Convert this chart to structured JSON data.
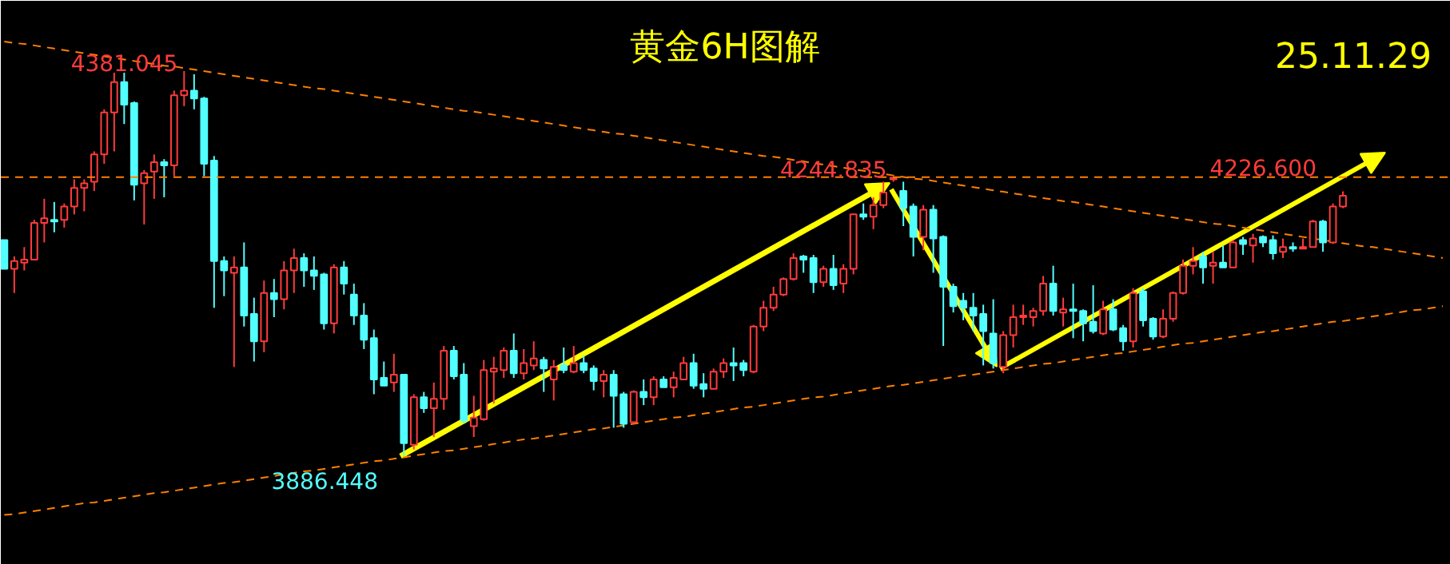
{
  "chart_data": {
    "type": "candlestick",
    "title": "黄金6H图解",
    "categories": [
      null,
      null,
      null,
      null,
      null,
      null,
      null,
      null,
      null,
      null,
      null,
      null,
      null,
      null,
      null,
      null,
      null,
      null,
      null,
      null,
      null,
      null,
      null,
      null,
      null,
      null,
      null,
      null,
      null,
      null,
      null,
      null,
      null,
      null,
      null,
      null,
      null,
      null,
      null,
      null,
      null,
      null,
      null,
      null,
      null,
      null,
      null,
      null,
      null,
      null,
      null,
      null,
      null,
      null,
      null,
      null,
      null,
      null,
      null,
      null,
      null,
      null,
      null,
      null,
      null,
      null,
      null,
      null,
      null,
      null,
      null,
      null,
      null,
      null,
      null,
      null,
      null,
      null,
      null,
      null,
      null,
      null,
      null,
      null,
      null,
      null,
      null,
      null,
      null,
      null,
      null,
      null,
      null,
      null,
      null,
      null,
      null,
      null,
      null,
      null,
      null,
      null,
      null,
      null,
      null,
      null,
      null,
      null,
      null,
      null,
      null,
      null,
      null,
      null,
      null,
      null,
      null,
      null,
      null,
      null,
      null,
      null,
      null,
      null,
      null,
      null,
      null,
      null,
      null,
      null,
      null,
      null,
      null,
      null,
      null,
      null,
      null,
      null,
      null,
      null,
      null,
      null,
      null,
      null,
      null
    ],
    "ohlc": [
      [
        4164,
        4164,
        4127,
        4127
      ],
      [
        4127,
        4143,
        4096,
        4137
      ],
      [
        4135,
        4155,
        4125,
        4139
      ],
      [
        4139,
        4190,
        4139,
        4186
      ],
      [
        4186,
        4217,
        4161,
        4192
      ],
      [
        4190,
        4213,
        4174,
        4188
      ],
      [
        4190,
        4211,
        4180,
        4207
      ],
      [
        4207,
        4242,
        4197,
        4231
      ],
      [
        4231,
        4242,
        4201,
        4237
      ],
      [
        4239,
        4278,
        4227,
        4274
      ],
      [
        4274,
        4332,
        4262,
        4328
      ],
      [
        4328,
        4379,
        4278,
        4367
      ],
      [
        4367,
        4379,
        4313,
        4338
      ],
      [
        4340,
        4342,
        4215,
        4235
      ],
      [
        4237,
        4254,
        4184,
        4250
      ],
      [
        4252,
        4274,
        4217,
        4264
      ],
      [
        4264,
        4268,
        4219,
        4260
      ],
      [
        4260,
        4356,
        4246,
        4350
      ],
      [
        4350,
        4381.045,
        4336,
        4356
      ],
      [
        4356,
        4377,
        4332,
        4346
      ],
      [
        4346,
        4348,
        4246,
        4262
      ],
      [
        4266,
        4272,
        4077,
        4137
      ],
      [
        4137,
        4143,
        4092,
        4125
      ],
      [
        4122,
        4143,
        4001,
        4129
      ],
      [
        4129,
        4161,
        4053,
        4067
      ],
      [
        4069,
        4090,
        4008,
        4034
      ],
      [
        4034,
        4112,
        4020,
        4096
      ],
      [
        4096,
        4114,
        4065,
        4088
      ],
      [
        4088,
        4137,
        4075,
        4125
      ],
      [
        4125,
        4153,
        4096,
        4141
      ],
      [
        4141,
        4147,
        4104,
        4125
      ],
      [
        4125,
        4143,
        4100,
        4118
      ],
      [
        4120,
        4122,
        4049,
        4057
      ],
      [
        4057,
        4133,
        4044,
        4129
      ],
      [
        4129,
        4137,
        4094,
        4108
      ],
      [
        4094,
        4108,
        4055,
        4067
      ],
      [
        4067,
        4083,
        4024,
        4036
      ],
      [
        4038,
        4049,
        3966,
        3985
      ],
      [
        3987,
        4008,
        3977,
        3977
      ],
      [
        3981,
        4018,
        3969,
        3991
      ],
      [
        3991,
        3991,
        3886.448,
        3903
      ],
      [
        3901,
        3966,
        3895,
        3962
      ],
      [
        3962,
        3969,
        3942,
        3948
      ],
      [
        3948,
        3981,
        3911,
        3960
      ],
      [
        3960,
        4028,
        3946,
        4022
      ],
      [
        4022,
        4028,
        3985,
        3989
      ],
      [
        3991,
        4006,
        3928,
        3932
      ],
      [
        3925,
        3964,
        3911,
        3936
      ],
      [
        3934,
        4010,
        3932,
        3997
      ],
      [
        3995,
        4014,
        3954,
        3999
      ],
      [
        3997,
        4026,
        3987,
        4022
      ],
      [
        4022,
        4044,
        3987,
        3993
      ],
      [
        3993,
        4024,
        3985,
        4006
      ],
      [
        4003,
        4034,
        3997,
        4012
      ],
      [
        4010,
        4014,
        3969,
        3999
      ],
      [
        3985,
        4010,
        3958,
        4001
      ],
      [
        4003,
        4026,
        3993,
        3997
      ],
      [
        3995,
        4028,
        3993,
        4006
      ],
      [
        4006,
        4016,
        3993,
        3997
      ],
      [
        3999,
        4003,
        3971,
        3983
      ],
      [
        3983,
        3997,
        3962,
        3991
      ],
      [
        3991,
        3997,
        3923,
        3964
      ],
      [
        3966,
        3969,
        3923,
        3928
      ],
      [
        3930,
        3971,
        3928,
        3969
      ],
      [
        3969,
        3985,
        3952,
        3962
      ],
      [
        3962,
        3989,
        3952,
        3985
      ],
      [
        3985,
        3989,
        3975,
        3975
      ],
      [
        3975,
        3995,
        3962,
        3987
      ],
      [
        3985,
        4014,
        3985,
        4006
      ],
      [
        4006,
        4018,
        3973,
        3977
      ],
      [
        3979,
        3993,
        3962,
        3973
      ],
      [
        3973,
        3999,
        3973,
        3995
      ],
      [
        3995,
        4012,
        3987,
        4006
      ],
      [
        4006,
        4026,
        3983,
        4003
      ],
      [
        4006,
        4010,
        3989,
        3997
      ],
      [
        3995,
        4055,
        3993,
        4053
      ],
      [
        4053,
        4086,
        4047,
        4077
      ],
      [
        4077,
        4104,
        4073,
        4094
      ],
      [
        4094,
        4116,
        4092,
        4114
      ],
      [
        4114,
        4147,
        4112,
        4141
      ],
      [
        4143,
        4145,
        4122,
        4139
      ],
      [
        4141,
        4145,
        4096,
        4110
      ],
      [
        4110,
        4131,
        4104,
        4127
      ],
      [
        4127,
        4145,
        4100,
        4106
      ],
      [
        4108,
        4133,
        4096,
        4127
      ],
      [
        4127,
        4198,
        4120,
        4197
      ],
      [
        4197,
        4211,
        4190,
        4194
      ],
      [
        4194,
        4219,
        4178,
        4209
      ],
      [
        4209,
        4239,
        4205,
        4225
      ],
      [
        4242,
        4244.835,
        4239,
        4244
      ],
      [
        4227,
        4239,
        4182,
        4205
      ],
      [
        4207,
        4211,
        4143,
        4168
      ],
      [
        4168,
        4209,
        4151,
        4203
      ],
      [
        4203,
        4209,
        4122,
        4166
      ],
      [
        4168,
        4170,
        4028,
        4104
      ],
      [
        4104,
        4108,
        4071,
        4079
      ],
      [
        4086,
        4096,
        4061,
        4077
      ],
      [
        4077,
        4096,
        4047,
        4067
      ],
      [
        4069,
        4081,
        4003,
        4047
      ],
      [
        4044,
        4088,
        3999,
        4006
      ],
      [
        4001,
        4047,
        3993,
        4042
      ],
      [
        4042,
        4081,
        4026,
        4065
      ],
      [
        4065,
        4081,
        4055,
        4067
      ],
      [
        4065,
        4077,
        4053,
        4073
      ],
      [
        4073,
        4118,
        4067,
        4108
      ],
      [
        4108,
        4131,
        4067,
        4073
      ],
      [
        4071,
        4090,
        4053,
        4075
      ],
      [
        4075,
        4108,
        4038,
        4073
      ],
      [
        4073,
        4075,
        4034,
        4057
      ],
      [
        4059,
        4106,
        4044,
        4047
      ],
      [
        4044,
        4086,
        4042,
        4075
      ],
      [
        4075,
        4088,
        4047,
        4049
      ],
      [
        4051,
        4055,
        4022,
        4034
      ],
      [
        4034,
        4102,
        4026,
        4096
      ],
      [
        4098,
        4102,
        4053,
        4061
      ],
      [
        4063,
        4065,
        4036,
        4040
      ],
      [
        4040,
        4075,
        4038,
        4063
      ],
      [
        4063,
        4098,
        4059,
        4096
      ],
      [
        4096,
        4139,
        4094,
        4131
      ],
      [
        4131,
        4155,
        4120,
        4137
      ],
      [
        4143,
        4149,
        4108,
        4129
      ],
      [
        4131,
        4149,
        4108,
        4135
      ],
      [
        4135,
        4157,
        4129,
        4129
      ],
      [
        4129,
        4164,
        4129,
        4161
      ],
      [
        4164,
        4168,
        4145,
        4159
      ],
      [
        4157,
        4172,
        4135,
        4166
      ],
      [
        4168,
        4170,
        4155,
        4161
      ],
      [
        4164,
        4170,
        4139,
        4147
      ],
      [
        4149,
        4166,
        4141,
        4155
      ],
      [
        4155,
        4161,
        4149,
        4153
      ],
      [
        4153,
        4166,
        4153,
        4155
      ],
      [
        4155,
        4190,
        4155,
        4188
      ],
      [
        4188,
        4190,
        4149,
        4161
      ],
      [
        4161,
        4211,
        4159,
        4207
      ],
      [
        4207,
        4226.6,
        4205,
        4221
      ],
      null,
      null,
      null,
      null,
      null,
      null,
      null,
      null,
      null,
      null
    ],
    "colors": [
      "#52ffff",
      "#ff3b3b",
      "#ff3b3b",
      "#ff3b3b",
      "#ff3b3b",
      "#52ffff",
      "#ff3b3b",
      "#ff3b3b",
      "#ff3b3b",
      "#ff3b3b",
      "#ff3b3b",
      "#ff3b3b",
      "#52ffff",
      "#52ffff",
      "#ff3b3b",
      "#ff3b3b",
      "#52ffff",
      "#ff3b3b",
      "#ff3b3b",
      "#52ffff",
      "#52ffff",
      "#52ffff",
      "#52ffff",
      "#ff3b3b",
      "#52ffff",
      "#52ffff",
      "#ff3b3b",
      "#52ffff",
      "#ff3b3b",
      "#ff3b3b",
      "#52ffff",
      "#52ffff",
      "#52ffff",
      "#ff3b3b",
      "#52ffff",
      "#52ffff",
      "#52ffff",
      "#52ffff",
      "#52ffff",
      "#ff3b3b",
      "#52ffff",
      "#ff3b3b",
      "#52ffff",
      "#ff3b3b",
      "#ff3b3b",
      "#52ffff",
      "#52ffff",
      "#ff3b3b",
      "#ff3b3b",
      "#ff3b3b",
      "#ff3b3b",
      "#52ffff",
      "#ff3b3b",
      "#ff3b3b",
      "#52ffff",
      "#ff3b3b",
      "#52ffff",
      "#ff3b3b",
      "#52ffff",
      "#52ffff",
      "#ff3b3b",
      "#52ffff",
      "#52ffff",
      "#ff3b3b",
      "#52ffff",
      "#ff3b3b",
      "#52ffff",
      "#ff3b3b",
      "#ff3b3b",
      "#52ffff",
      "#52ffff",
      "#ff3b3b",
      "#ff3b3b",
      "#52ffff",
      "#52ffff",
      "#ff3b3b",
      "#ff3b3b",
      "#ff3b3b",
      "#ff3b3b",
      "#ff3b3b",
      "#52ffff",
      "#52ffff",
      "#ff3b3b",
      "#52ffff",
      "#ff3b3b",
      "#ff3b3b",
      "#52ffff",
      "#ff3b3b",
      "#ff3b3b",
      "#ff3b3b",
      "#52ffff",
      "#52ffff",
      "#ff3b3b",
      "#52ffff",
      "#52ffff",
      "#52ffff",
      "#52ffff",
      "#52ffff",
      "#52ffff",
      "#52ffff",
      "#ff3b3b",
      "#ff3b3b",
      "#ff3b3b",
      "#ff3b3b",
      "#ff3b3b",
      "#52ffff",
      "#ff3b3b",
      "#52ffff",
      "#52ffff",
      "#52ffff",
      "#ff3b3b",
      "#52ffff",
      "#52ffff",
      "#ff3b3b",
      "#52ffff",
      "#52ffff",
      "#ff3b3b",
      "#ff3b3b",
      "#ff3b3b",
      "#ff3b3b",
      "#52ffff",
      "#ff3b3b",
      "#52ffff",
      "#ff3b3b",
      "#52ffff",
      "#ff3b3b",
      "#52ffff",
      "#52ffff",
      "#ff3b3b",
      "#52ffff",
      "#ff3b3b",
      "#ff3b3b",
      "#52ffff",
      "#ff3b3b",
      "#ff3b3b",
      null,
      null,
      null,
      null,
      null,
      null,
      null,
      null,
      null,
      null
    ],
    "series": [
      {
        "type": "line",
        "color": "#ff7f00",
        "line_style": "dashed",
        "values": [
          4419,
          4417,
          4416,
          4414,
          4412,
          4410,
          4408,
          4406,
          4404,
          4402,
          4400,
          4398,
          4396,
          4394,
          4392,
          4390,
          4388,
          4387,
          4385,
          4383,
          4381,
          4379,
          4377,
          4375,
          4373,
          4371,
          4369,
          4367,
          4365,
          4363,
          4361,
          4359,
          4358,
          4356,
          4354,
          4352,
          4350,
          4348,
          4346,
          4344,
          4342,
          4340,
          4338,
          4336,
          4334,
          4332,
          4330,
          4329,
          4327,
          4325,
          4323,
          4321,
          4319,
          4317,
          4315,
          4313,
          4311,
          4309,
          4307,
          4305,
          4303,
          4301,
          4300,
          4298,
          4296,
          4294,
          4292,
          4290,
          4288,
          4286,
          4284,
          4282,
          4280,
          4278,
          4276,
          4274,
          4272,
          4271,
          4269,
          4267,
          4265,
          4263,
          4261,
          4259,
          4257,
          4255,
          4253,
          4251,
          4249,
          4247,
          4245,
          4243,
          4242,
          4240,
          4238,
          4236,
          4234,
          4232,
          4230,
          4228,
          4226,
          4224,
          4222,
          4220,
          4218,
          4216,
          4214,
          4213,
          4211,
          4209,
          4207,
          4205,
          4203,
          4201,
          4199,
          4197,
          4195,
          4193,
          4191,
          4189,
          4187,
          4185,
          4184,
          4182,
          4180,
          4178,
          4176,
          4174,
          4172,
          4170,
          4168,
          4166,
          4164,
          4162,
          4160,
          4158,
          4156,
          4155,
          4153,
          4151,
          4149,
          4147,
          4145,
          4143,
          4141
        ]
      },
      {
        "type": "line",
        "color": "#ff7f00",
        "line_style": "dashed",
        "values": [
          3811,
          3812,
          3814,
          3816,
          3818,
          3820,
          3822,
          3824,
          3826,
          3827,
          3829,
          3831,
          3833,
          3835,
          3837,
          3839,
          3840,
          3842,
          3844,
          3846,
          3848,
          3850,
          3852,
          3853,
          3855,
          3857,
          3859,
          3861,
          3863,
          3865,
          3867,
          3868,
          3870,
          3872,
          3874,
          3876,
          3878,
          3880,
          3881,
          3883,
          3885,
          3887,
          3889,
          3891,
          3893,
          3894,
          3896,
          3898,
          3900,
          3902,
          3904,
          3906,
          3908,
          3909,
          3911,
          3913,
          3915,
          3917,
          3919,
          3921,
          3922,
          3924,
          3926,
          3928,
          3930,
          3932,
          3934,
          3936,
          3937,
          3939,
          3941,
          3943,
          3945,
          3947,
          3949,
          3950,
          3952,
          3954,
          3956,
          3958,
          3960,
          3962,
          3963,
          3965,
          3967,
          3969,
          3971,
          3973,
          3975,
          3977,
          3978,
          3980,
          3982,
          3984,
          3986,
          3988,
          3990,
          3991,
          3993,
          3995,
          3997,
          3999,
          4001,
          4003,
          4005,
          4006,
          4008,
          4010,
          4012,
          4014,
          4016,
          4018,
          4019,
          4021,
          4023,
          4025,
          4027,
          4029,
          4031,
          4032,
          4034,
          4036,
          4038,
          4040,
          4042,
          4044,
          4046,
          4047,
          4049,
          4051,
          4053,
          4055,
          4057,
          4059,
          4060,
          4062,
          4064,
          4066,
          4068,
          4070,
          4072,
          4074,
          4075,
          4077,
          4079
        ]
      }
    ],
    "ref_lines": [
      {
        "axis": "y",
        "value": 4244.835,
        "color": "#ff7f00",
        "line_style": "dashed"
      }
    ],
    "annotations": [
      {
        "text": "4381.045",
        "y": 4381.045
      },
      {
        "text": "4244.835",
        "y": 4244.835
      },
      "3886.448",
      "4226.600",
      "25.11.29"
    ],
    "tick_labels": false
  }
}
